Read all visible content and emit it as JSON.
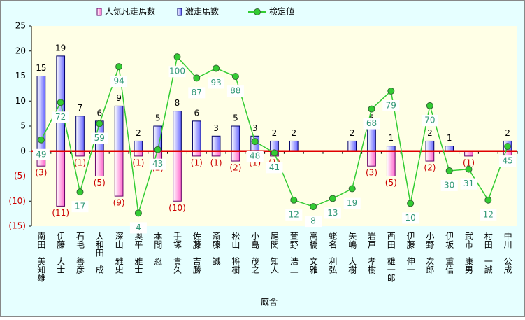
{
  "chart_data": {
    "type": "bar-line",
    "xlabel": "厩舎",
    "categories": [
      "南田　美知雄",
      "伊藤　大士",
      "石毛　善彦",
      "大和田　成",
      "深山　雅史",
      "奥平　雅士",
      "本間　忍",
      "手塚　貴久",
      "佐藤　吉勝",
      "斎藤　誠",
      "松山　将樹",
      "小島　茂之",
      "尾関　知人",
      "萱野　浩二",
      "高橋　文雅",
      "蛯名　利弘",
      "矢嶋　大樹",
      "岩戸　孝樹",
      "西田　雄一郎",
      "伊藤　伸一",
      "小野　次郎",
      "伊坂　重信",
      "武市　康男",
      "村田　一誠",
      "中川　公成"
    ],
    "series": [
      {
        "name": "人気凡走馬数",
        "type": "bar",
        "color": "#ff66cc",
        "values": [
          -3,
          -11,
          -1,
          -5,
          -9,
          -1,
          -2,
          -10,
          -1,
          -1,
          -2,
          -1,
          -1,
          0,
          0,
          0,
          0,
          -3,
          -5,
          0,
          -2,
          0,
          -1,
          0,
          -1
        ],
        "value_labels": [
          "(3)",
          "(11)",
          "(1)",
          "(5)",
          "(9)",
          "(1)",
          "(2)",
          "(10)",
          "(1)",
          "(1)",
          "(2)",
          "(1)",
          "(1)",
          null,
          null,
          null,
          null,
          "(3)",
          "(5)",
          null,
          "(2)",
          null,
          "(1)",
          null,
          "(1)"
        ]
      },
      {
        "name": "激走馬数",
        "type": "bar",
        "color": "#3333cc",
        "values": [
          15,
          19,
          7,
          6,
          9,
          2,
          5,
          8,
          6,
          3,
          5,
          3,
          2,
          2,
          0,
          0,
          2,
          5,
          1,
          0,
          2,
          1,
          0,
          0,
          2
        ]
      },
      {
        "name": "検定値",
        "type": "line",
        "axis": "y2",
        "color": "#33cc33",
        "values": [
          49,
          72,
          17,
          59,
          94,
          4,
          43,
          100,
          87,
          93,
          88,
          48,
          41,
          12,
          8,
          13,
          19,
          68,
          79,
          10,
          70,
          30,
          31,
          12,
          45
        ]
      }
    ],
    "ylim": [
      -15,
      25
    ],
    "yticks": [
      {
        "value": -15,
        "label": "(15)"
      },
      {
        "value": -10,
        "label": "(10)"
      },
      {
        "value": -5,
        "label": "(5)"
      },
      0,
      5,
      10,
      15,
      20,
      25
    ],
    "y2lim": [
      -4,
      119
    ],
    "zero_line_color": "#e00000"
  }
}
